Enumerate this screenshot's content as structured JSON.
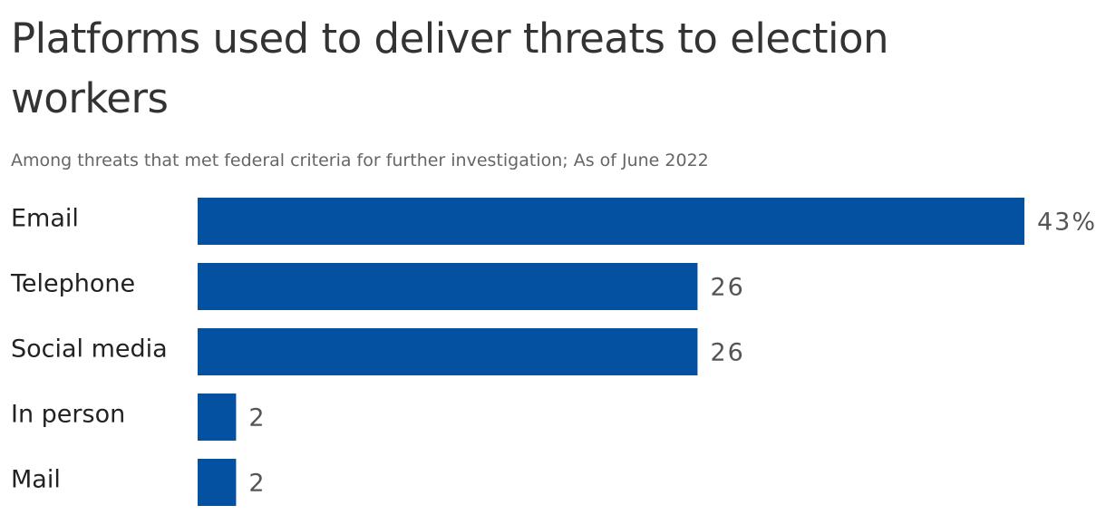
{
  "chart_data": {
    "type": "bar",
    "orientation": "horizontal",
    "title": "Platforms used to deliver threats to election workers",
    "subtitle": "Among threats that met federal criteria for further investigation; As of June 2022",
    "categories": [
      "Email",
      "Telephone",
      "Social media",
      "In person",
      "Mail"
    ],
    "values": [
      43,
      26,
      26,
      2,
      2
    ],
    "value_labels": [
      "43%",
      "26",
      "26",
      "2",
      "2"
    ],
    "color": "#0551a1"
  }
}
